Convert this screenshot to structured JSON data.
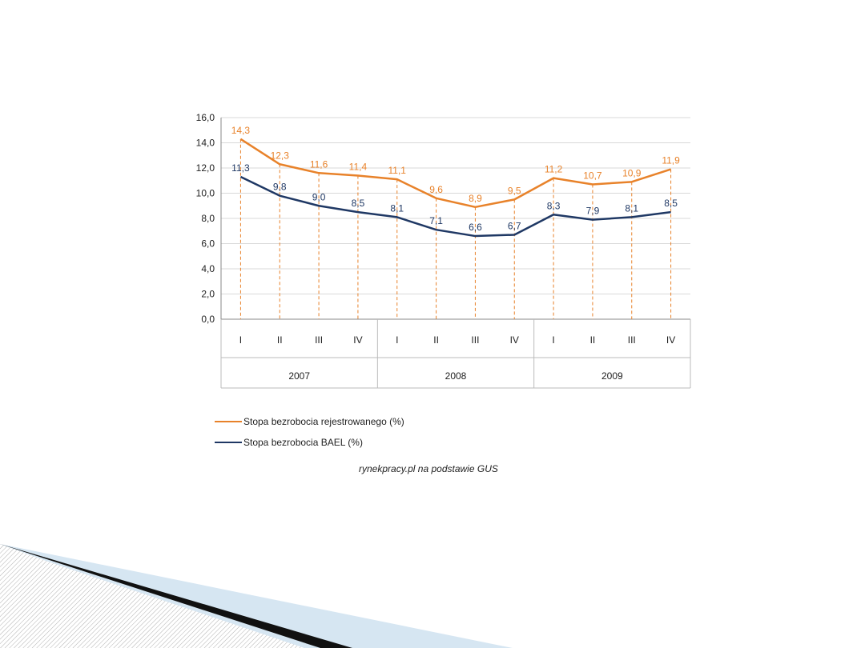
{
  "slide": {
    "title": ""
  },
  "chart_data": {
    "type": "line",
    "title": "",
    "xlabel": "",
    "ylabel": "",
    "ylim": [
      0,
      16
    ],
    "y_ticks": [
      "0,0",
      "2,0",
      "4,0",
      "6,0",
      "8,0",
      "10,0",
      "12,0",
      "14,0",
      "16,0"
    ],
    "categories": [
      "I",
      "II",
      "III",
      "IV",
      "I",
      "II",
      "III",
      "IV",
      "I",
      "II",
      "III",
      "IV"
    ],
    "groups": [
      {
        "label": "2007",
        "span": 4
      },
      {
        "label": "2008",
        "span": 4
      },
      {
        "label": "2009",
        "span": 4
      }
    ],
    "grid": true,
    "legend_position": "bottom",
    "series": [
      {
        "name": "Stopa bezrobocia rejestrowanego (%)",
        "color": "#e8822a",
        "values": [
          14.3,
          12.3,
          11.6,
          11.4,
          11.1,
          9.6,
          8.9,
          9.5,
          11.2,
          10.7,
          10.9,
          11.9
        ],
        "labels": [
          "14,3",
          "12,3",
          "11,6",
          "11,4",
          "11,1",
          "9,6",
          "8,9",
          "9,5",
          "11,2",
          "10,7",
          "10,9",
          "11,9"
        ]
      },
      {
        "name": "Stopa bezrobocia BAEL (%)",
        "color": "#1f3864",
        "values": [
          11.3,
          9.8,
          9.0,
          8.5,
          8.1,
          7.1,
          6.6,
          6.7,
          8.3,
          7.9,
          8.1,
          8.5
        ],
        "labels": [
          "11,3",
          "9,8",
          "9,0",
          "8,5",
          "8,1",
          "7,1",
          "6,6",
          "6,7",
          "8,3",
          "7,9",
          "8,1",
          "8,5"
        ]
      }
    ],
    "source": "rynekpracy.pl na podstawie GUS"
  }
}
